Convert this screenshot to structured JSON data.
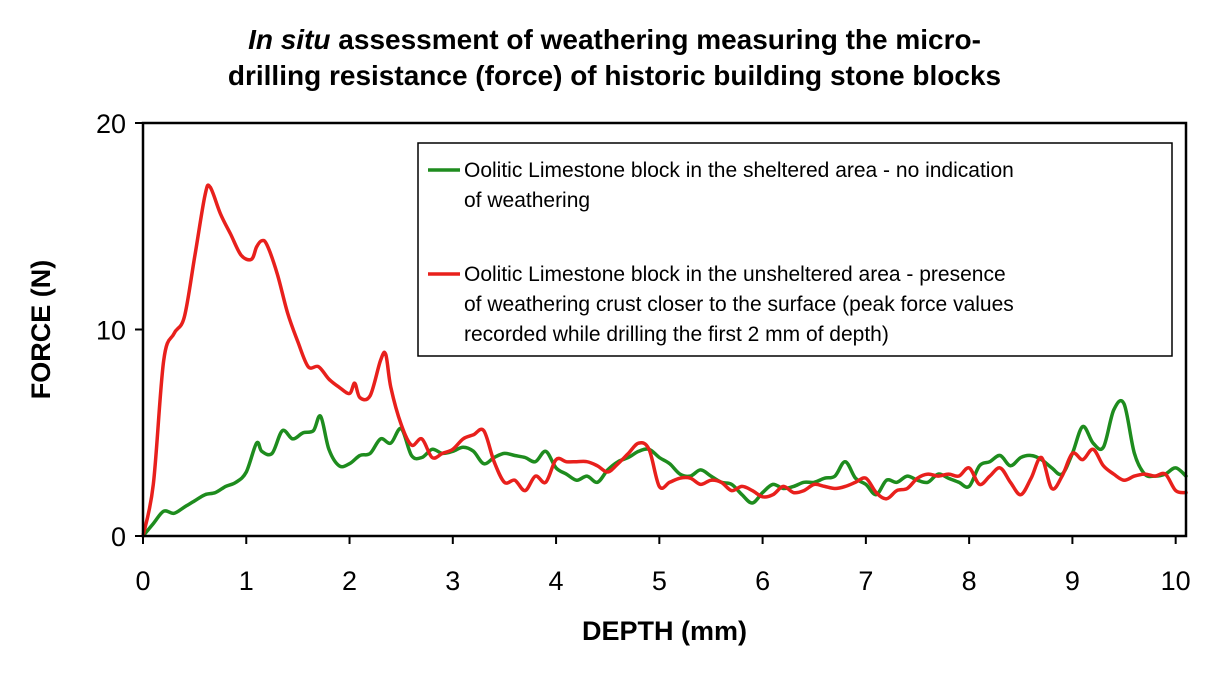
{
  "chart_data": {
    "type": "line",
    "title_italic": "In situ",
    "title_rest_line1": " assessment of weathering measuring the micro-",
    "title_line2": "drilling resistance (force) of historic building stone blocks",
    "xlabel": "DEPTH (mm)",
    "ylabel": "FORCE (N)",
    "xlim": [
      0,
      10.1
    ],
    "ylim": [
      0,
      20
    ],
    "x_ticks": [
      "0",
      "1",
      "2",
      "3",
      "4",
      "5",
      "6",
      "7",
      "8",
      "9",
      "10"
    ],
    "y_ticks": [
      "0",
      "10",
      "20"
    ],
    "legend_position": "top-right",
    "series": [
      {
        "name_lines": [
          "Oolitic Limestone block in the sheltered area - no indication",
          "of weathering"
        ],
        "color": "#1e8c1e",
        "x": [
          0,
          0.1,
          0.2,
          0.3,
          0.4,
          0.5,
          0.6,
          0.7,
          0.8,
          0.9,
          1.0,
          1.1,
          1.15,
          1.25,
          1.35,
          1.45,
          1.55,
          1.65,
          1.72,
          1.8,
          1.9,
          2.0,
          2.1,
          2.2,
          2.3,
          2.4,
          2.5,
          2.6,
          2.7,
          2.8,
          2.9,
          3.0,
          3.1,
          3.2,
          3.3,
          3.4,
          3.5,
          3.6,
          3.7,
          3.8,
          3.9,
          4.0,
          4.1,
          4.2,
          4.3,
          4.4,
          4.5,
          4.6,
          4.7,
          4.8,
          4.9,
          5.0,
          5.1,
          5.2,
          5.3,
          5.4,
          5.5,
          5.6,
          5.7,
          5.8,
          5.9,
          6.0,
          6.1,
          6.2,
          6.3,
          6.4,
          6.5,
          6.6,
          6.7,
          6.8,
          6.9,
          7.0,
          7.1,
          7.2,
          7.3,
          7.4,
          7.5,
          7.6,
          7.7,
          7.8,
          7.9,
          8.0,
          8.1,
          8.2,
          8.3,
          8.4,
          8.5,
          8.6,
          8.7,
          8.8,
          8.9,
          9.0,
          9.1,
          9.2,
          9.3,
          9.4,
          9.5,
          9.6,
          9.7,
          9.8,
          9.9,
          10.0,
          10.1
        ],
        "y": [
          0,
          0.6,
          1.2,
          1.1,
          1.4,
          1.7,
          2.0,
          2.1,
          2.4,
          2.6,
          3.1,
          4.5,
          4.1,
          4.0,
          5.1,
          4.7,
          5.0,
          5.1,
          5.8,
          4.2,
          3.4,
          3.5,
          3.9,
          4.0,
          4.7,
          4.5,
          5.2,
          3.9,
          3.8,
          4.2,
          4.0,
          4.1,
          4.3,
          4.1,
          3.5,
          3.8,
          4.0,
          3.9,
          3.8,
          3.6,
          4.1,
          3.3,
          3.0,
          2.7,
          2.9,
          2.6,
          3.2,
          3.6,
          3.8,
          4.1,
          4.2,
          3.8,
          3.5,
          3.0,
          2.9,
          3.2,
          2.9,
          2.6,
          2.5,
          2.0,
          1.6,
          2.1,
          2.5,
          2.3,
          2.4,
          2.6,
          2.6,
          2.8,
          2.9,
          3.6,
          2.8,
          2.5,
          2.0,
          2.7,
          2.6,
          2.9,
          2.7,
          2.6,
          3.0,
          2.8,
          2.6,
          2.4,
          3.4,
          3.6,
          3.9,
          3.4,
          3.8,
          3.9,
          3.7,
          3.3,
          3.0,
          4.0,
          5.3,
          4.5,
          4.3,
          6.1,
          6.4,
          4.0,
          3.0,
          2.9,
          3.0,
          3.3,
          2.9
        ]
      },
      {
        "name_lines": [
          "Oolitic Limestone block in the unsheltered area - presence",
          "of weathering crust closer to the surface (peak force values",
          "recorded while drilling the first 2 mm of depth)"
        ],
        "color": "#e8201c",
        "x": [
          0,
          0.1,
          0.2,
          0.3,
          0.4,
          0.5,
          0.6,
          0.65,
          0.75,
          0.85,
          0.95,
          1.05,
          1.1,
          1.15,
          1.2,
          1.3,
          1.4,
          1.5,
          1.6,
          1.7,
          1.8,
          1.9,
          2.0,
          2.05,
          2.1,
          2.2,
          2.3,
          2.35,
          2.4,
          2.5,
          2.6,
          2.7,
          2.8,
          2.9,
          3.0,
          3.1,
          3.2,
          3.3,
          3.4,
          3.5,
          3.6,
          3.7,
          3.8,
          3.9,
          4.0,
          4.1,
          4.2,
          4.3,
          4.4,
          4.5,
          4.6,
          4.7,
          4.8,
          4.9,
          5.0,
          5.1,
          5.2,
          5.3,
          5.4,
          5.5,
          5.6,
          5.7,
          5.8,
          5.9,
          6.0,
          6.1,
          6.2,
          6.3,
          6.4,
          6.5,
          6.6,
          6.7,
          6.8,
          6.9,
          7.0,
          7.1,
          7.2,
          7.3,
          7.4,
          7.5,
          7.6,
          7.7,
          7.8,
          7.9,
          8.0,
          8.1,
          8.2,
          8.3,
          8.4,
          8.5,
          8.6,
          8.7,
          8.8,
          8.9,
          9.0,
          9.1,
          9.2,
          9.3,
          9.4,
          9.5,
          9.6,
          9.7,
          9.8,
          9.9,
          10.0,
          10.1
        ],
        "y": [
          0,
          2.5,
          8.5,
          9.8,
          10.6,
          13.5,
          16.5,
          16.9,
          15.6,
          14.6,
          13.6,
          13.4,
          14.0,
          14.3,
          14.1,
          12.7,
          10.8,
          9.4,
          8.2,
          8.2,
          7.6,
          7.2,
          6.9,
          7.4,
          6.7,
          6.8,
          8.5,
          8.8,
          7.2,
          5.4,
          4.4,
          4.7,
          3.8,
          4.0,
          4.2,
          4.7,
          4.9,
          5.1,
          3.6,
          2.6,
          2.7,
          2.2,
          2.9,
          2.6,
          3.7,
          3.6,
          3.6,
          3.6,
          3.4,
          3.1,
          3.5,
          4.0,
          4.5,
          4.2,
          2.4,
          2.6,
          2.8,
          2.8,
          2.5,
          2.7,
          2.6,
          2.2,
          2.4,
          2.2,
          1.9,
          2.0,
          2.4,
          2.1,
          2.2,
          2.5,
          2.4,
          2.3,
          2.4,
          2.6,
          2.8,
          2.1,
          1.8,
          2.2,
          2.3,
          2.8,
          3.0,
          2.9,
          3.0,
          2.9,
          3.3,
          2.5,
          2.9,
          3.3,
          2.6,
          2.0,
          2.8,
          3.8,
          2.3,
          2.9,
          4.0,
          3.7,
          4.2,
          3.4,
          3.0,
          2.7,
          2.9,
          3.0,
          2.9,
          3.0,
          2.2,
          2.1
        ]
      }
    ]
  }
}
